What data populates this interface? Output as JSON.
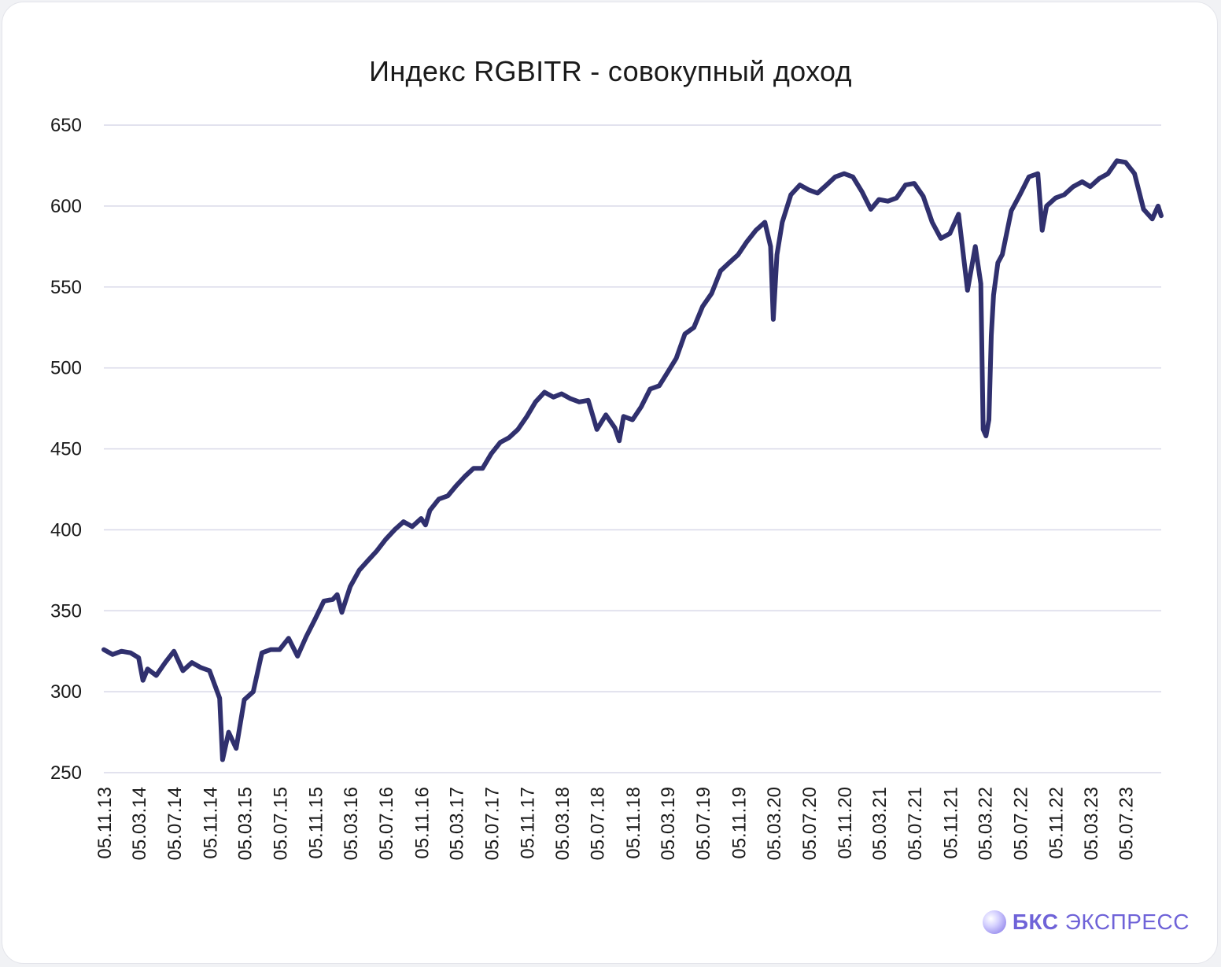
{
  "title": "Индекс RGBITR - совокупный доход",
  "brand": {
    "strong": "БКС",
    "light": " ЭКСПРЕСС",
    "icon": "bcs-sphere-logo-icon"
  },
  "colors": {
    "line": "#30306e",
    "grid": "#d8d8e8",
    "brand": "#6f63d8"
  },
  "chart_data": {
    "type": "line",
    "title": "Индекс RGBITR - совокупный доход",
    "xlabel": "",
    "ylabel": "",
    "ylim": [
      250,
      650
    ],
    "yticks": [
      250,
      300,
      350,
      400,
      450,
      500,
      550,
      600,
      650
    ],
    "xticks": [
      "05.11.13",
      "05.03.14",
      "05.07.14",
      "05.11.14",
      "05.03.15",
      "05.07.15",
      "05.11.15",
      "05.03.16",
      "05.07.16",
      "05.11.16",
      "05.03.17",
      "05.07.17",
      "05.11.17",
      "05.03.18",
      "05.07.18",
      "05.11.18",
      "05.03.19",
      "05.07.19",
      "05.11.19",
      "05.03.20",
      "05.07.20",
      "05.11.20",
      "05.03.21",
      "05.07.21",
      "05.11.21",
      "05.03.22",
      "05.07.22",
      "05.11.22",
      "05.03.23",
      "05.07.23"
    ],
    "grid": true,
    "legend": "none",
    "series": [
      {
        "x": [
          "2013-11-05",
          "2013-12-05",
          "2014-01-05",
          "2014-02-05",
          "2014-03-05",
          "2014-03-20",
          "2014-04-05",
          "2014-05-05",
          "2014-06-05",
          "2014-07-05",
          "2014-08-05",
          "2014-09-05",
          "2014-10-05",
          "2014-11-05",
          "2014-12-10",
          "2014-12-20",
          "2015-01-10",
          "2015-02-05",
          "2015-03-05",
          "2015-04-05",
          "2015-05-05",
          "2015-06-05",
          "2015-07-05",
          "2015-08-05",
          "2015-09-05",
          "2015-10-05",
          "2015-11-05",
          "2015-12-05",
          "2016-01-05",
          "2016-01-20",
          "2016-02-05",
          "2016-03-05",
          "2016-04-05",
          "2016-05-05",
          "2016-06-05",
          "2016-07-05",
          "2016-08-05",
          "2016-09-05",
          "2016-10-05",
          "2016-11-05",
          "2016-11-20",
          "2016-12-05",
          "2017-01-05",
          "2017-02-05",
          "2017-03-05",
          "2017-04-05",
          "2017-05-05",
          "2017-06-05",
          "2017-07-05",
          "2017-08-05",
          "2017-09-05",
          "2017-10-05",
          "2017-11-05",
          "2017-12-05",
          "2018-01-05",
          "2018-02-05",
          "2018-03-05",
          "2018-04-05",
          "2018-05-05",
          "2018-06-05",
          "2018-07-05",
          "2018-08-05",
          "2018-09-05",
          "2018-09-20",
          "2018-10-05",
          "2018-11-05",
          "2018-12-05",
          "2019-01-05",
          "2019-02-05",
          "2019-03-05",
          "2019-04-05",
          "2019-05-05",
          "2019-06-05",
          "2019-07-05",
          "2019-08-05",
          "2019-09-05",
          "2019-10-05",
          "2019-11-05",
          "2019-12-05",
          "2020-01-05",
          "2020-02-05",
          "2020-02-25",
          "2020-03-05",
          "2020-03-18",
          "2020-04-05",
          "2020-05-05",
          "2020-06-05",
          "2020-07-05",
          "2020-08-05",
          "2020-09-05",
          "2020-10-05",
          "2020-11-05",
          "2020-12-05",
          "2021-01-05",
          "2021-02-05",
          "2021-03-05",
          "2021-04-05",
          "2021-05-05",
          "2021-06-05",
          "2021-07-05",
          "2021-08-05",
          "2021-09-05",
          "2021-10-05",
          "2021-11-05",
          "2021-12-05",
          "2022-01-05",
          "2022-02-01",
          "2022-02-20",
          "2022-02-28",
          "2022-03-10",
          "2022-03-20",
          "2022-03-28",
          "2022-04-05",
          "2022-04-20",
          "2022-05-05",
          "2022-06-05",
          "2022-07-05",
          "2022-08-05",
          "2022-09-05",
          "2022-09-20",
          "2022-10-05",
          "2022-11-05",
          "2022-12-05",
          "2023-01-05",
          "2023-02-05",
          "2023-03-05",
          "2023-04-05",
          "2023-05-05",
          "2023-06-05",
          "2023-07-05",
          "2023-08-05",
          "2023-09-05",
          "2023-10-05",
          "2023-10-25",
          "2023-11-05"
        ],
        "y": [
          326,
          323,
          325,
          324,
          321,
          307,
          314,
          310,
          318,
          325,
          313,
          318,
          315,
          313,
          296,
          258,
          275,
          265,
          295,
          300,
          324,
          326,
          326,
          333,
          322,
          334,
          345,
          356,
          357,
          360,
          349,
          365,
          375,
          381,
          387,
          394,
          400,
          405,
          402,
          407,
          403,
          412,
          419,
          421,
          427,
          433,
          438,
          438,
          447,
          454,
          457,
          462,
          470,
          479,
          485,
          482,
          484,
          481,
          479,
          480,
          462,
          471,
          463,
          455,
          470,
          468,
          476,
          487,
          489,
          497,
          506,
          521,
          525,
          538,
          546,
          560,
          565,
          570,
          578,
          585,
          590,
          575,
          530,
          570,
          590,
          607,
          613,
          610,
          608,
          613,
          618,
          620,
          618,
          609,
          598,
          604,
          603,
          605,
          613,
          614,
          606,
          590,
          580,
          583,
          595,
          548,
          575,
          552,
          462,
          458,
          468,
          520,
          545,
          565,
          570,
          597,
          607,
          618,
          620,
          585,
          600,
          605,
          607,
          612,
          615,
          612,
          617,
          620,
          628,
          627,
          620,
          598,
          592,
          600,
          594
        ]
      }
    ]
  }
}
